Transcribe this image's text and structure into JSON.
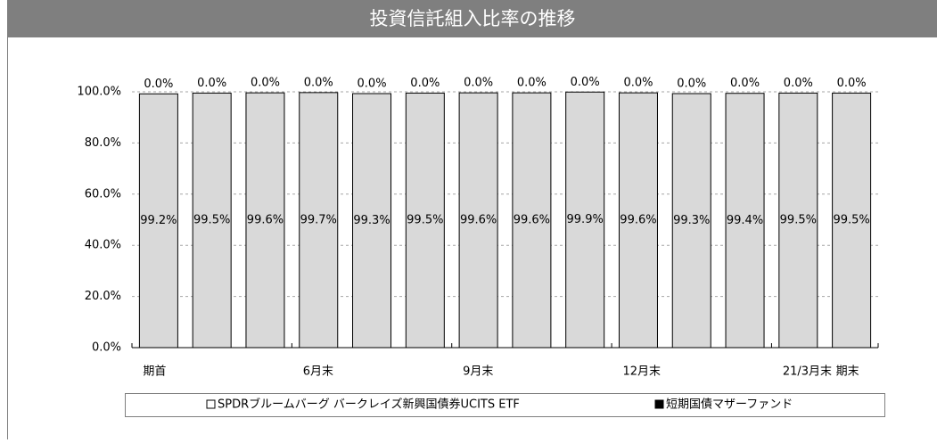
{
  "chart_data": {
    "type": "stacked_bar",
    "title": "投資信託組入比率の推移",
    "categories": [
      "期首",
      null,
      null,
      "6月末",
      null,
      null,
      "9月末",
      null,
      null,
      "12月末",
      null,
      null,
      "21/3月末",
      "期末"
    ],
    "series": [
      {
        "name": "SPDRブルームバーグ バークレイズ新興国債券UCITS ETF",
        "color": "#d9d9d9",
        "values": [
          99.2,
          99.5,
          99.6,
          99.7,
          99.3,
          99.5,
          99.6,
          99.6,
          99.9,
          99.6,
          99.3,
          99.4,
          99.5,
          99.5
        ],
        "value_labels": [
          "99.2%",
          "99.5%",
          "99.6%",
          "99.7%",
          "99.3%",
          "99.5%",
          "99.6%",
          "99.6%",
          "99.9%",
          "99.6%",
          "99.3%",
          "99.4%",
          "99.5%",
          "99.5%"
        ]
      },
      {
        "name": "短期国債マザーファンド",
        "color": "#000000",
        "values": [
          0,
          0,
          0,
          0,
          0,
          0,
          0,
          0,
          0,
          0,
          0,
          0,
          0,
          0
        ],
        "value_labels": [
          "0.0%",
          "0.0%",
          "0.0%",
          "0.0%",
          "0.0%",
          "0.0%",
          "0.0%",
          "0.0%",
          "0.0%",
          "0.0%",
          "0.0%",
          "0.0%",
          "0.0%",
          "0.0%"
        ]
      }
    ],
    "ylim": [
      0,
      100
    ],
    "yticks": [
      {
        "value": 0,
        "label": "0.0%"
      },
      {
        "value": 20,
        "label": "20.0%"
      },
      {
        "value": 40,
        "label": "40.0%"
      },
      {
        "value": 60,
        "label": "60.0%"
      },
      {
        "value": 80,
        "label": "80.0%"
      },
      {
        "value": 100,
        "label": "100.0%"
      }
    ],
    "grid": true,
    "legend": "bottom"
  }
}
